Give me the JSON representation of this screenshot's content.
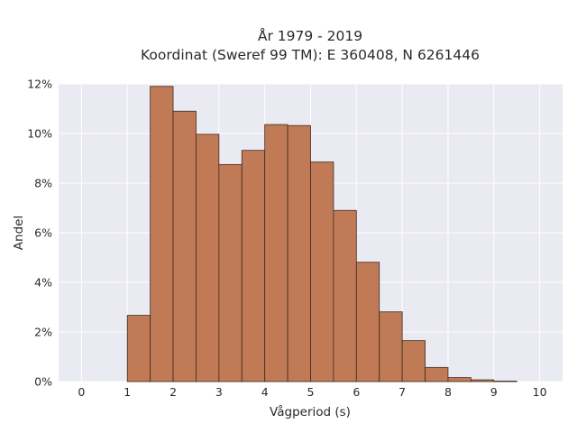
{
  "chart_data": {
    "type": "bar",
    "title_lines": [
      "År 1979 - 2019",
      "Koordinat (Sweref 99 TM): E 360408, N 6261446"
    ],
    "xlabel": "Vågperiod (s)",
    "ylabel": "Andel",
    "xlim": [
      -0.5,
      10.5
    ],
    "ylim": [
      0,
      0.12
    ],
    "xticks": [
      0,
      1,
      2,
      3,
      4,
      5,
      6,
      7,
      8,
      9,
      10
    ],
    "yticks": [
      0,
      0.02,
      0.04,
      0.06,
      0.08,
      0.1,
      0.12
    ],
    "ytick_labels": [
      "0%",
      "2%",
      "4%",
      "6%",
      "8%",
      "10%",
      "12%"
    ],
    "bin_width": 0.5,
    "bins": [
      {
        "start": 1.0,
        "value": 0.0267
      },
      {
        "start": 1.5,
        "value": 0.119
      },
      {
        "start": 2.0,
        "value": 0.109
      },
      {
        "start": 2.5,
        "value": 0.0997
      },
      {
        "start": 3.0,
        "value": 0.0875
      },
      {
        "start": 3.5,
        "value": 0.0932
      },
      {
        "start": 4.0,
        "value": 0.1036
      },
      {
        "start": 4.5,
        "value": 0.1032
      },
      {
        "start": 5.0,
        "value": 0.0885
      },
      {
        "start": 5.5,
        "value": 0.069
      },
      {
        "start": 6.0,
        "value": 0.0481
      },
      {
        "start": 6.5,
        "value": 0.0281
      },
      {
        "start": 7.0,
        "value": 0.0165
      },
      {
        "start": 7.5,
        "value": 0.0057
      },
      {
        "start": 8.0,
        "value": 0.0016
      },
      {
        "start": 8.5,
        "value": 0.0007
      },
      {
        "start": 9.0,
        "value": 0.0002
      }
    ],
    "grid": true,
    "colors": {
      "bar": "#c07a55",
      "bar_edge": "#3e2a1e",
      "plot_bg": "#eaeaf2",
      "grid": "#ffffff"
    }
  }
}
